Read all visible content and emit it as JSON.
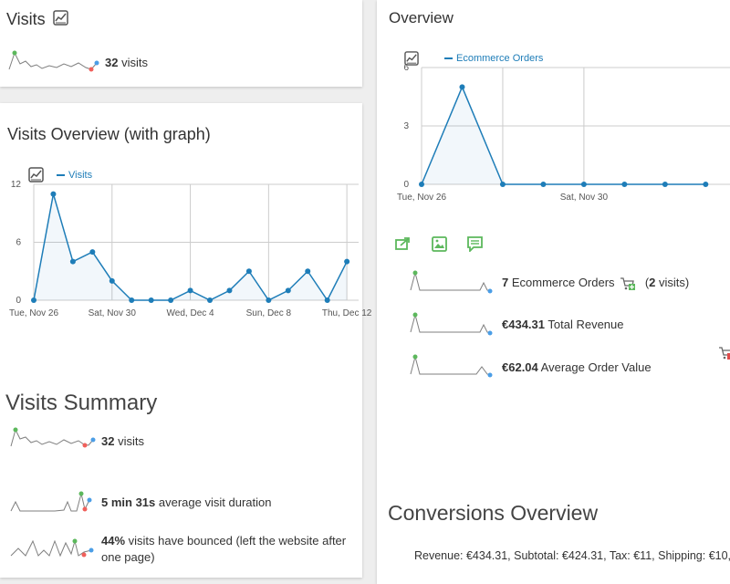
{
  "visits_widget": {
    "title": "Visits",
    "visits_value": "32",
    "visits_label": "visits"
  },
  "visits_overview": {
    "title": "Visits Overview (with graph)",
    "legend": "Visits"
  },
  "overview": {
    "title": "Overview",
    "legend": "Ecommerce Orders",
    "metrics": [
      {
        "value": "7",
        "label": "Ecommerce Orders",
        "extra_open": "(",
        "extra_value": "2",
        "extra_label": "visits)"
      },
      {
        "value": "€434.31",
        "label": "Total Revenue"
      },
      {
        "value": "€62.04",
        "label": "Average Order Value"
      }
    ]
  },
  "visits_summary": {
    "title": "Visits Summary",
    "metrics": [
      {
        "value": "32",
        "label": "visits"
      },
      {
        "value": "5 min 31s",
        "label": "average visit duration"
      },
      {
        "value": "44%",
        "label": "visits have bounced (left the website after one page)"
      }
    ]
  },
  "conversions": {
    "title": "Conversions Overview",
    "summary": "Revenue: €434.31, Subtotal: €424.31, Tax: €11, Shipping: €10,"
  },
  "colors": {
    "line": "#1e7db8",
    "spark": "#7f7f7f",
    "spark_start": "#5cb85c",
    "spark_low": "#f0605b",
    "spark_end": "#4b9ee6",
    "action_icon": "#5cb85c"
  },
  "chart_data": [
    {
      "type": "line",
      "series": [
        {
          "name": "Visits",
          "values": [
            0,
            11,
            4,
            5,
            2,
            0,
            0,
            0,
            1,
            0,
            1,
            3,
            0,
            1,
            3,
            0,
            4
          ]
        }
      ],
      "x": [
        "Nov 26",
        "Nov 27",
        "Nov 28",
        "Nov 29",
        "Nov 30",
        "Dec 1",
        "Dec 2",
        "Dec 3",
        "Dec 4",
        "Dec 5",
        "Dec 6",
        "Dec 7",
        "Dec 8",
        "Dec 9",
        "Dec 10",
        "Dec 11",
        "Dec 12"
      ],
      "xticks": [
        "Tue, Nov 26",
        "Sat, Nov 30",
        "Wed, Dec 4",
        "Sun, Dec 8",
        "Thu, Dec 12"
      ],
      "yticks": [
        "0",
        "6",
        "12"
      ],
      "ylim": [
        0,
        12
      ],
      "grid": true,
      "legend_position": "top-left"
    },
    {
      "type": "line",
      "series": [
        {
          "name": "Ecommerce Orders",
          "values": [
            0,
            5,
            0,
            0,
            0,
            0,
            0,
            0
          ]
        }
      ],
      "x": [
        "Nov 26",
        "Nov 27",
        "Nov 28",
        "Nov 29",
        "Nov 30",
        "Dec 1",
        "Dec 2",
        "Dec 3"
      ],
      "xticks": [
        "Tue, Nov 26",
        "Sat, Nov 30"
      ],
      "yticks": [
        "0",
        "3",
        "6"
      ],
      "ylim": [
        0,
        6
      ],
      "grid": true,
      "legend_position": "top-left"
    }
  ]
}
